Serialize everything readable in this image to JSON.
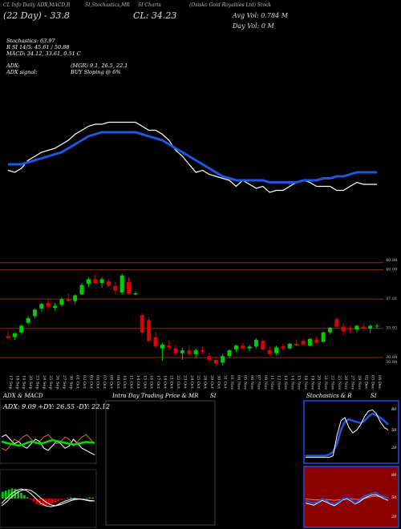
{
  "header": {
    "line1": "(Osisko Gold Royalties Ltd) Stock",
    "ticker_left": "(22 Day) - 33.8",
    "close": "CL: 34.23",
    "avg_vol": "Avg Vol: 0.784  M",
    "day_vol": "Day Vol: 0   M",
    "top_labels": [
      "CL Info Daily ADX,MACD,B",
      "SI,Stochastics,MR",
      "SI Charts"
    ]
  },
  "indicators": {
    "stochastics": "Stochastics: 63.97",
    "r_si": "R                SI 14/5: 45.61 / 50.88",
    "macd": "MACD: 34.12,  33.61,  0.51 C",
    "adx": "ADX:",
    "adx_right": "(MGR) 9.1,  26.5,   22.1",
    "adx_signal": "ADX  signal:",
    "adx_signal_right": "BUY Sloping @ 6%"
  },
  "price_levels": [
    "40.84",
    "40.09",
    "37.01",
    "33.92",
    "30.84",
    "30.84"
  ],
  "dates": [
    "17 Sep",
    "18 Sep",
    "19 Sep",
    "20 Sep",
    "23 Sep",
    "24 Sep",
    "25 Sep",
    "26 Sep",
    "27 Sep",
    "30 Sep",
    "01 Oct",
    "02 Oct",
    "03 Oct",
    "04 Oct",
    "07 Oct",
    "08 Oct",
    "09 Oct",
    "10 Oct",
    "11 Oct",
    "14 Oct",
    "15 Oct",
    "16 Oct",
    "17 Oct",
    "18 Oct",
    "21 Oct",
    "22 Oct",
    "23 Oct",
    "24 Oct",
    "25 Oct",
    "28 Oct",
    "29 Oct",
    "30 Oct",
    "31 Oct",
    "01 Nov",
    "04 Nov",
    "05 Nov",
    "06 Nov",
    "07 Nov",
    "08 Nov",
    "11 Nov",
    "12 Nov",
    "13 Nov",
    "14 Nov",
    "15 Nov",
    "18 Nov",
    "19 Nov",
    "20 Nov",
    "21 Nov",
    "22 Nov",
    "25 Nov",
    "26 Nov",
    "27 Nov",
    "29 Nov",
    "02 Dec",
    "03 Dec",
    "04 Dec"
  ],
  "panels": {
    "adx_title": "ADX  & MACD",
    "adx_values": "ADX: 9.09  +DY: 26.55  -DY: 22.12",
    "intra_title": "Intra  Day Trading Price  & MR",
    "intra_si": "SI",
    "stoch_title": "Stochastics & R",
    "stoch_si": "SI",
    "stoch_ticks": [
      "80",
      "50",
      "20"
    ],
    "rsi_ticks": [
      "80",
      "50",
      "20"
    ]
  },
  "colors": {
    "up": "#00cc00",
    "down": "#dd0000",
    "ma": "#1f57e0",
    "price_line": "#ffffff",
    "level_line": "#8b2a1a",
    "rsi_bg": "#8b0000",
    "stoch_bg": "#000000",
    "panel_border": "#1f4fd8"
  },
  "chart_data": {
    "type": "candlestick",
    "title": "(Osisko Gold Royalties Ltd) Stock",
    "ylim": [
      29.5,
      41.5
    ],
    "candles": [
      {
        "o": 33.1,
        "h": 33.6,
        "l": 32.8,
        "c": 32.9
      },
      {
        "o": 33.0,
        "h": 33.5,
        "l": 32.7,
        "c": 33.4
      },
      {
        "o": 33.5,
        "h": 34.3,
        "l": 33.3,
        "c": 34.2
      },
      {
        "o": 34.5,
        "h": 35.2,
        "l": 34.3,
        "c": 35.0
      },
      {
        "o": 35.2,
        "h": 36.0,
        "l": 35.0,
        "c": 35.9
      },
      {
        "o": 36.0,
        "h": 36.6,
        "l": 35.7,
        "c": 36.5
      },
      {
        "o": 36.6,
        "h": 37.1,
        "l": 36.0,
        "c": 36.2
      },
      {
        "o": 36.1,
        "h": 36.6,
        "l": 35.8,
        "c": 36.3
      },
      {
        "o": 36.4,
        "h": 37.2,
        "l": 36.2,
        "c": 37.0
      },
      {
        "o": 37.0,
        "h": 37.6,
        "l": 36.7,
        "c": 36.8
      },
      {
        "o": 36.8,
        "h": 37.5,
        "l": 36.5,
        "c": 37.4
      },
      {
        "o": 37.5,
        "h": 38.7,
        "l": 37.4,
        "c": 38.5
      },
      {
        "o": 38.6,
        "h": 39.3,
        "l": 38.3,
        "c": 39.1
      },
      {
        "o": 39.1,
        "h": 39.6,
        "l": 38.6,
        "c": 38.7
      },
      {
        "o": 38.7,
        "h": 39.3,
        "l": 38.2,
        "c": 39.1
      },
      {
        "o": 38.9,
        "h": 39.1,
        "l": 38.3,
        "c": 38.4
      },
      {
        "o": 38.4,
        "h": 38.8,
        "l": 37.6,
        "c": 37.9
      },
      {
        "o": 37.7,
        "h": 39.7,
        "l": 37.5,
        "c": 39.5
      },
      {
        "o": 38.8,
        "h": 39.3,
        "l": 37.5,
        "c": 37.6
      },
      {
        "o": 37.5,
        "h": 37.8,
        "l": 37.4,
        "c": 37.6
      },
      {
        "o": 35.3,
        "h": 35.5,
        "l": 33.2,
        "c": 33.5
      },
      {
        "o": 34.8,
        "h": 35.1,
        "l": 32.5,
        "c": 32.6
      },
      {
        "o": 33.0,
        "h": 33.5,
        "l": 31.8,
        "c": 32.0
      },
      {
        "o": 31.8,
        "h": 32.4,
        "l": 30.5,
        "c": 32.2
      },
      {
        "o": 32.1,
        "h": 32.6,
        "l": 31.6,
        "c": 31.9
      },
      {
        "o": 31.8,
        "h": 32.2,
        "l": 31.1,
        "c": 31.3
      },
      {
        "o": 31.3,
        "h": 31.9,
        "l": 30.6,
        "c": 31.6
      },
      {
        "o": 31.6,
        "h": 32.1,
        "l": 31.0,
        "c": 31.2
      },
      {
        "o": 31.2,
        "h": 31.8,
        "l": 30.8,
        "c": 31.6
      },
      {
        "o": 31.6,
        "h": 32.0,
        "l": 31.2,
        "c": 31.5
      },
      {
        "o": 31.0,
        "h": 31.3,
        "l": 30.3,
        "c": 30.6
      },
      {
        "o": 30.6,
        "h": 31.0,
        "l": 29.9,
        "c": 30.2
      },
      {
        "o": 30.3,
        "h": 31.2,
        "l": 30.0,
        "c": 31.0
      },
      {
        "o": 31.0,
        "h": 31.7,
        "l": 30.8,
        "c": 31.6
      },
      {
        "o": 31.7,
        "h": 32.2,
        "l": 31.4,
        "c": 32.1
      },
      {
        "o": 32.1,
        "h": 32.4,
        "l": 31.7,
        "c": 31.8
      },
      {
        "o": 31.8,
        "h": 32.2,
        "l": 31.5,
        "c": 32.0
      },
      {
        "o": 32.0,
        "h": 32.9,
        "l": 31.8,
        "c": 32.7
      },
      {
        "o": 32.6,
        "h": 32.8,
        "l": 31.6,
        "c": 31.7
      },
      {
        "o": 31.6,
        "h": 32.0,
        "l": 31.0,
        "c": 31.2
      },
      {
        "o": 31.3,
        "h": 32.1,
        "l": 31.1,
        "c": 31.9
      },
      {
        "o": 32.0,
        "h": 32.3,
        "l": 31.6,
        "c": 31.8
      },
      {
        "o": 31.8,
        "h": 32.4,
        "l": 31.7,
        "c": 32.3
      },
      {
        "o": 32.3,
        "h": 32.7,
        "l": 32.0,
        "c": 32.1
      },
      {
        "o": 32.6,
        "h": 32.8,
        "l": 32.1,
        "c": 32.2
      },
      {
        "o": 32.1,
        "h": 32.9,
        "l": 32.0,
        "c": 32.8
      },
      {
        "o": 32.7,
        "h": 33.1,
        "l": 32.3,
        "c": 32.4
      },
      {
        "o": 32.5,
        "h": 33.6,
        "l": 32.4,
        "c": 33.5
      },
      {
        "o": 33.5,
        "h": 34.1,
        "l": 33.3,
        "c": 34.0
      },
      {
        "o": 34.9,
        "h": 35.1,
        "l": 34.0,
        "c": 34.1
      },
      {
        "o": 34.1,
        "h": 34.5,
        "l": 33.2,
        "c": 33.6
      },
      {
        "o": 33.9,
        "h": 34.2,
        "l": 33.4,
        "c": 33.8
      },
      {
        "o": 33.8,
        "h": 34.3,
        "l": 33.5,
        "c": 34.2
      },
      {
        "o": 34.1,
        "h": 34.5,
        "l": 33.6,
        "c": 33.9
      },
      {
        "o": 33.9,
        "h": 34.3,
        "l": 33.4,
        "c": 34.2
      },
      {
        "o": 34.2,
        "h": 34.4,
        "l": 33.9,
        "c": 34.2
      }
    ],
    "ma_line": [
      62,
      62,
      62,
      61,
      60,
      59,
      58,
      57,
      56,
      54,
      52,
      50,
      48,
      47,
      46,
      46,
      46,
      46,
      46,
      46,
      47,
      48,
      49,
      50,
      52,
      54,
      56,
      58,
      60,
      62,
      64,
      66,
      68,
      69,
      70,
      70,
      70,
      70,
      70,
      71,
      71,
      71,
      71,
      71,
      70,
      70,
      70,
      69,
      69,
      68,
      68,
      67,
      66,
      66,
      66,
      66
    ],
    "price_line": [
      65,
      66,
      64,
      60,
      58,
      56,
      55,
      54,
      52,
      50,
      47,
      45,
      43,
      42,
      42,
      41,
      41,
      41,
      41,
      41,
      43,
      45,
      45,
      47,
      50,
      55,
      58,
      62,
      66,
      65,
      67,
      68,
      69,
      70,
      73,
      70,
      72,
      74,
      73,
      76,
      75,
      75,
      73,
      71,
      70,
      71,
      73,
      73,
      73,
      75,
      75,
      73,
      71,
      72,
      72,
      72
    ]
  }
}
